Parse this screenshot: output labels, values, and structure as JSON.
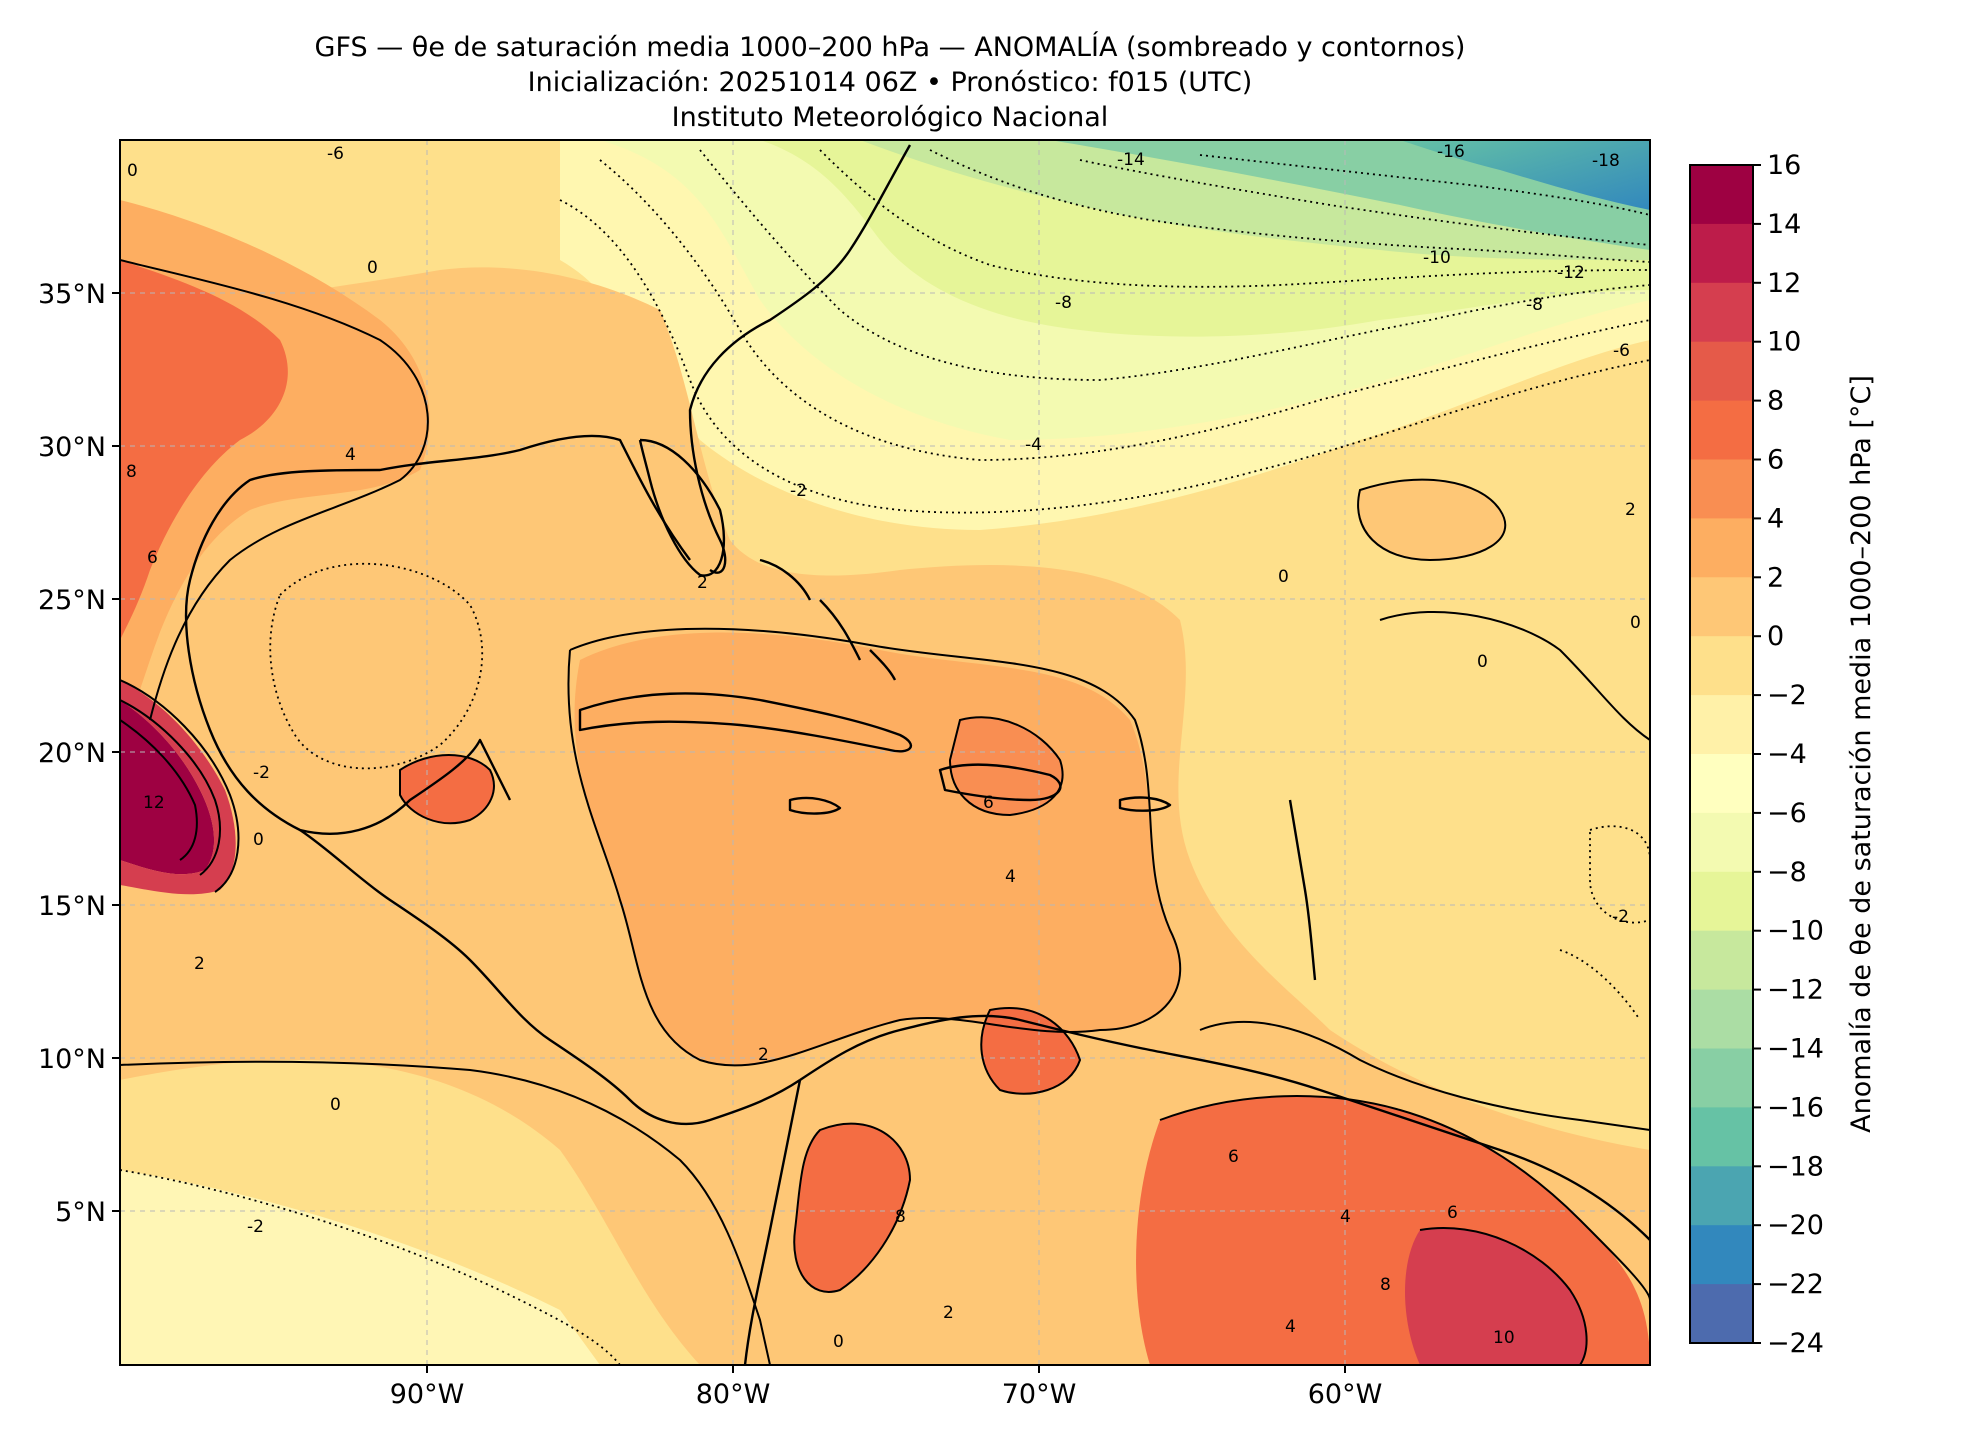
{
  "figure": {
    "title_line1": "GFS — θe de saturación media 1000–200 hPa — ANOMALÍA (sombreado y contornos)",
    "title_line2": "Inicialización: 20251014 06Z   •   Pronóstico: f015 (UTC)",
    "title_line3": "Instituto Meteorológico Nacional"
  },
  "map": {
    "region": "Caribe, Golfo de México y Atlántico occidental",
    "lon_range": [
      -100,
      -50
    ],
    "lat_range": [
      0,
      40
    ],
    "lon_ticks": [
      "90°W",
      "80°W",
      "70°W",
      "60°W"
    ],
    "lat_ticks": [
      "35°N",
      "30°N",
      "25°N",
      "20°N",
      "15°N",
      "10°N",
      "5°N"
    ],
    "gridlines": true,
    "layers": [
      "anomaly-shading",
      "anomaly-contours",
      "coastlines"
    ]
  },
  "colorbar": {
    "label": "Anomalía de θe de saturación media 1000–200 hPa [°C]",
    "tick_labels": [
      "16",
      "14",
      "12",
      "10",
      "8",
      "6",
      "4",
      "2",
      "0",
      "−2",
      "−4",
      "−6",
      "−8",
      "−10",
      "−12",
      "−14",
      "−16",
      "−18",
      "−20",
      "−22",
      "−24"
    ],
    "colors": [
      "#9e0142",
      "#bd1c4a",
      "#d53e4f",
      "#e55a49",
      "#f46d43",
      "#f98e52",
      "#fdae61",
      "#fec776",
      "#fee08b",
      "#fff1a8",
      "#ffffbf",
      "#f3fab1",
      "#e6f598",
      "#c7e89d",
      "#abdda4",
      "#88cfa4",
      "#66c2a5",
      "#4ba5b1",
      "#3288bd",
      "#4d6bae",
      "#5e4fa2"
    ]
  },
  "contour_labels": {
    "positive": [
      "2",
      "4",
      "6",
      "8",
      "10",
      "12"
    ],
    "zero": "0",
    "negative": [
      "-2",
      "-4",
      "-6",
      "-8",
      "-10",
      "-12",
      "-14",
      "-16",
      "-18"
    ]
  }
}
